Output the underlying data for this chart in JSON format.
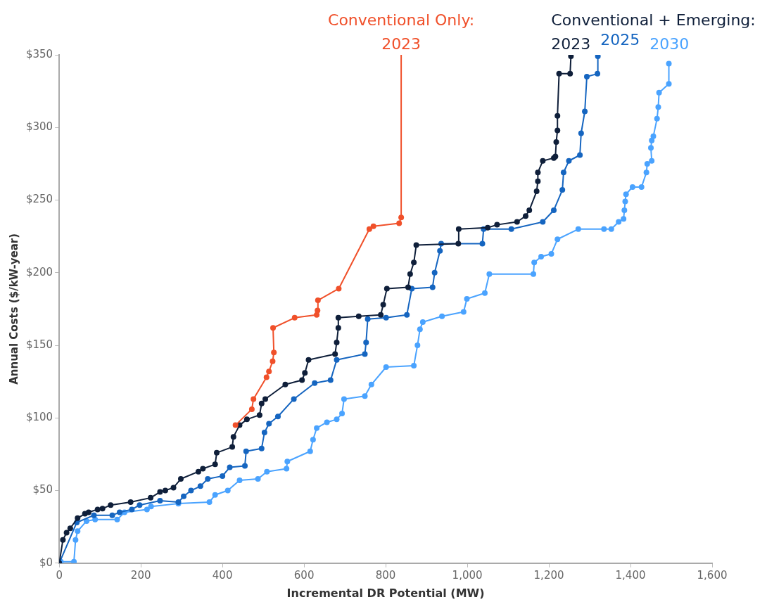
{
  "chart_data": {
    "type": "line",
    "xlabel": "Incremental DR Potential (MW)",
    "ylabel": "Annual Costs ($/kW-year)",
    "annotations": [
      "Conventional Only:",
      "Conventional + Emerging:"
    ],
    "xlim": [
      0,
      1600
    ],
    "xticks": [
      0,
      200,
      400,
      600,
      800,
      {
        "value": 1000,
        "label": "1,000"
      },
      {
        "value": 1200,
        "label": "1,200"
      },
      {
        "value": 1400,
        "label": "1,400"
      },
      {
        "value": 1600,
        "label": "1,600"
      }
    ],
    "ylim": [
      0,
      350
    ],
    "yticks": [
      {
        "value": 0,
        "label": "$0"
      },
      {
        "value": 50,
        "label": "$50"
      },
      {
        "value": 100,
        "label": "$100"
      },
      {
        "value": 150,
        "label": "$150"
      },
      {
        "value": 200,
        "label": "$200"
      },
      {
        "value": 250,
        "label": "$250"
      },
      {
        "value": 300,
        "label": "$300"
      },
      {
        "value": 350,
        "label": "$350"
      }
    ],
    "grid": false,
    "legend": false,
    "marker": "circle",
    "line_style": "solid",
    "series": [
      {
        "name": "2023",
        "color": "#f0502a",
        "x": [
          432,
          472,
          476,
          508,
          514,
          523,
          526,
          524,
          577,
          631,
          633,
          634,
          685,
          760,
          770,
          833,
          838
        ],
        "values": [
          95,
          106,
          113,
          128,
          132,
          139,
          145,
          162,
          169,
          171,
          174,
          181,
          189,
          230,
          232,
          234,
          238
        ]
      },
      {
        "name": "2023",
        "color": "#0f1f3a",
        "x": [
          0,
          9,
          18,
          27,
          45,
          63,
          72,
          94,
          106,
          126,
          175,
          224,
          247,
          260,
          280,
          298,
          341,
          352,
          382,
          386,
          424,
          427,
          442,
          460,
          491,
          496,
          505,
          554,
          595,
          602,
          611,
          676,
          680,
          684,
          684,
          734,
          788,
          794,
          803,
          855,
          860,
          869,
          875,
          978,
          979,
          1050,
          1073,
          1122,
          1143,
          1152,
          1170,
          1173,
          1173,
          1185,
          1212,
          1216,
          1218,
          1221,
          1221,
          1225,
          1252,
          1254
        ],
        "values": [
          0,
          16,
          21,
          24,
          31,
          34,
          35,
          37,
          37.5,
          40,
          42,
          45,
          49,
          50,
          52,
          58,
          63,
          65,
          68,
          76,
          80,
          87,
          95,
          99,
          102,
          110,
          113,
          123,
          126,
          131,
          140,
          144,
          152,
          162,
          169,
          170,
          171,
          178,
          189,
          190,
          199,
          207,
          219,
          220,
          230,
          231,
          233,
          235,
          239,
          243,
          256,
          263,
          269,
          277,
          279,
          280,
          290,
          298,
          308,
          337,
          337,
          349
        ]
      },
      {
        "name": "2025",
        "color": "#1565c0",
        "x": [
          0,
          43,
          85,
          130,
          148,
          178,
          197,
          247,
          292,
          305,
          323,
          346,
          364,
          400,
          418,
          455,
          458,
          496,
          503,
          514,
          536,
          575,
          626,
          665,
          680,
          749,
          752,
          756,
          801,
          852,
          864,
          915,
          920,
          933,
          936,
          1037,
          1040,
          1108,
          1185,
          1212,
          1233,
          1236,
          1249,
          1276,
          1279,
          1288,
          1293,
          1319,
          1320
        ],
        "values": [
          0,
          28,
          33,
          33,
          35,
          37,
          40,
          43,
          42,
          46,
          50,
          53,
          58,
          60,
          66,
          67,
          77,
          79,
          90,
          96,
          101,
          113,
          124,
          126,
          140,
          144,
          152,
          168,
          169,
          171,
          189,
          190,
          200,
          215,
          220,
          220,
          230,
          230,
          235,
          243,
          257,
          269,
          277,
          281,
          296,
          311,
          335,
          337,
          349
        ]
      },
      {
        "name": "2030",
        "color": "#4aa3ff",
        "x": [
          4,
          36,
          40,
          45,
          67,
          88,
          142,
          160,
          215,
          225,
          292,
          368,
          382,
          413,
          442,
          487,
          509,
          557,
          559,
          615,
          622,
          631,
          656,
          680,
          693,
          698,
          749,
          765,
          801,
          869,
          878,
          884,
          891,
          938,
          991,
          999,
          1043,
          1054,
          1162,
          1164,
          1181,
          1206,
          1221,
          1272,
          1335,
          1353,
          1371,
          1383,
          1385,
          1387,
          1389,
          1405,
          1427,
          1439,
          1441,
          1452,
          1450,
          1452,
          1456,
          1465,
          1468,
          1470,
          1494,
          1494
        ],
        "values": [
          1,
          1,
          16,
          22,
          29,
          30,
          30,
          35,
          37,
          39,
          41,
          42,
          47,
          50,
          57,
          58,
          63,
          65,
          70,
          77,
          85,
          93,
          97,
          99,
          103,
          113,
          115,
          123,
          135,
          136,
          150,
          161,
          166,
          170,
          173,
          182,
          186,
          199,
          199,
          207,
          211,
          213,
          223,
          230,
          230,
          230,
          235,
          237,
          243,
          249,
          254,
          259,
          259,
          269,
          275,
          277,
          286,
          291,
          294,
          306,
          314,
          324,
          330,
          344
        ]
      }
    ]
  }
}
